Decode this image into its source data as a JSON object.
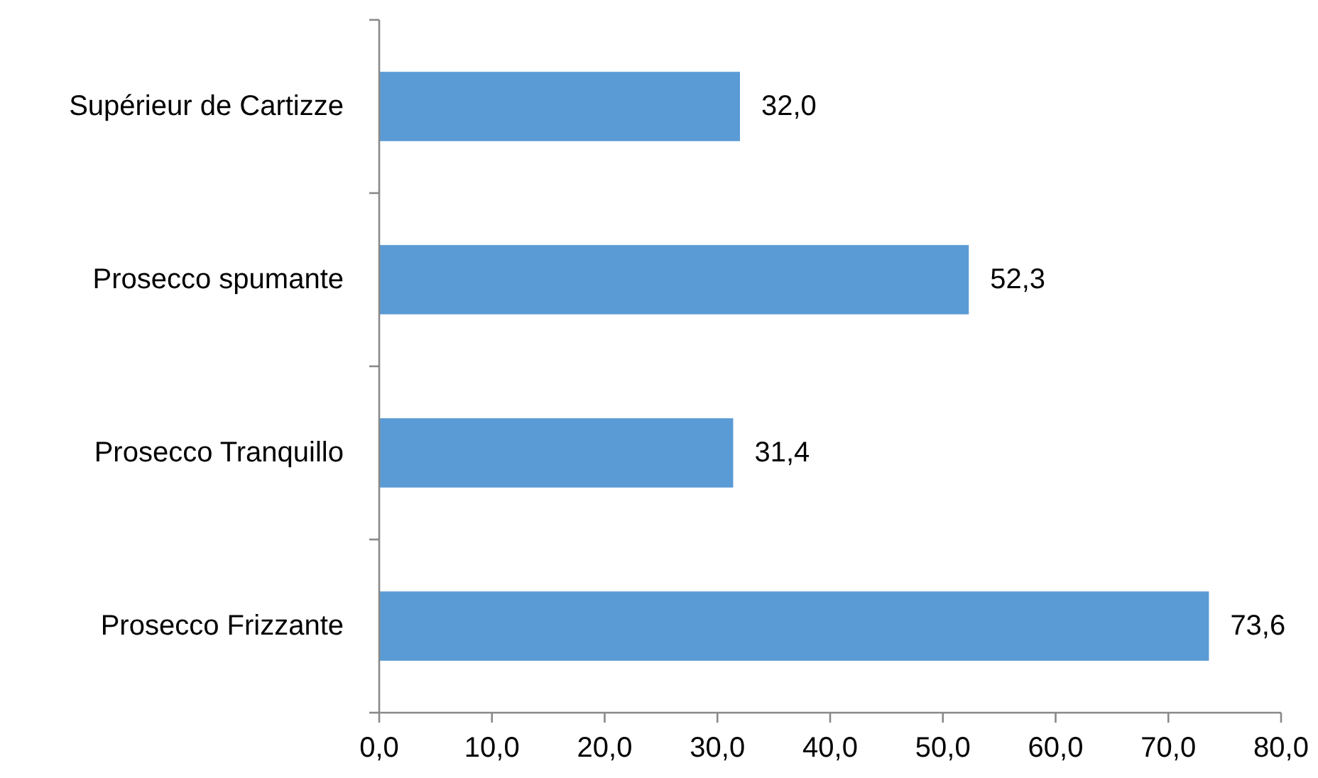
{
  "chart_data": {
    "type": "bar",
    "orientation": "horizontal",
    "categories": [
      "Supérieur de Cartizze",
      "Prosecco spumante",
      "Prosecco Tranquillo",
      "Prosecco Frizzante"
    ],
    "values": [
      32.0,
      52.3,
      31.4,
      73.6
    ],
    "color": "#5b9bd5",
    "value_labels": [
      "32,0",
      "52,3",
      "31,4",
      "73,6"
    ],
    "xlim": [
      0,
      80
    ],
    "xticks": [
      {
        "value": 0,
        "label": "0,0"
      },
      {
        "value": 10,
        "label": "10,0"
      },
      {
        "value": 20,
        "label": "20,0"
      },
      {
        "value": 30,
        "label": "30,0"
      },
      {
        "value": 40,
        "label": "40,0"
      },
      {
        "value": 50,
        "label": "50,0"
      },
      {
        "value": 60,
        "label": "60,0"
      },
      {
        "value": 70,
        "label": "70,0"
      },
      {
        "value": 80,
        "label": "80,0"
      }
    ],
    "grid": false
  }
}
